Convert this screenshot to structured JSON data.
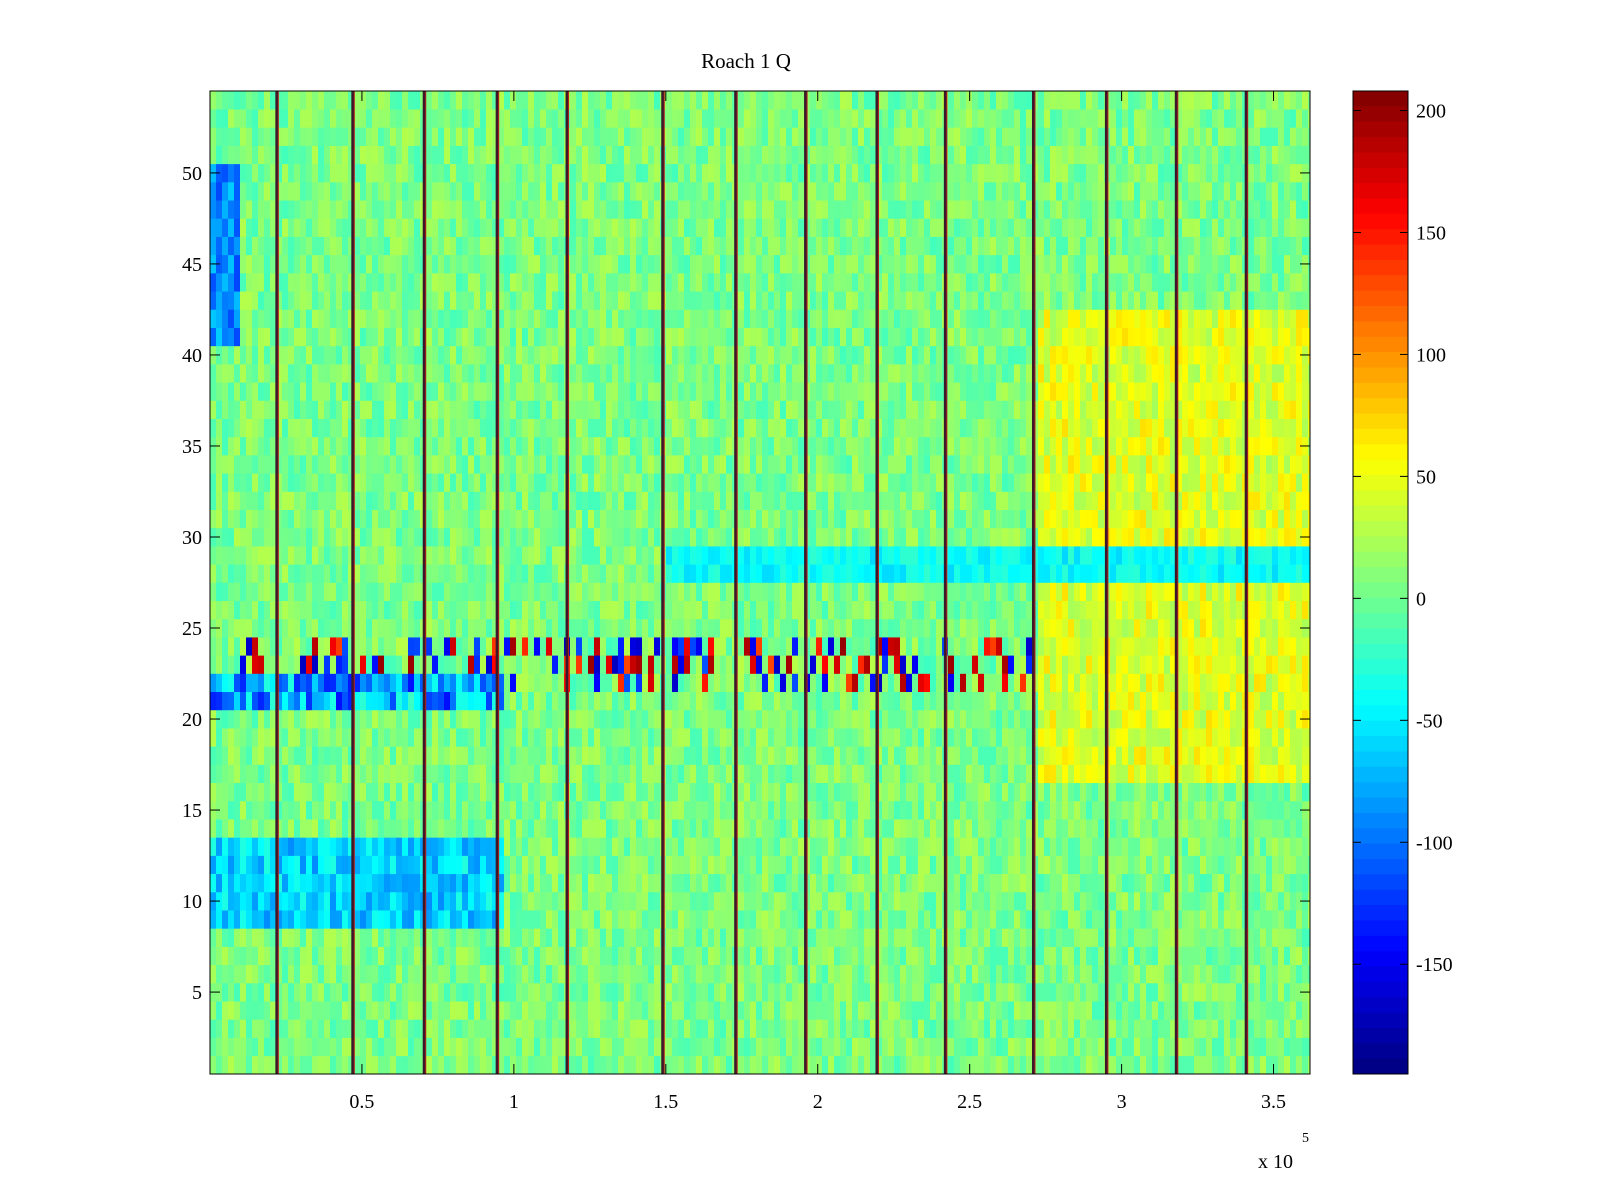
{
  "chart_data": {
    "type": "heatmap",
    "title": "Roach 1 Q",
    "xlabel": "",
    "ylabel": "",
    "x_range": [
      0,
      362000
    ],
    "y_range": [
      0.5,
      54.5
    ],
    "rows": 54,
    "xticks": [
      50000,
      100000,
      150000,
      200000,
      250000,
      300000,
      350000
    ],
    "xtick_labels": [
      "0.5",
      "1",
      "1.5",
      "2",
      "2.5",
      "3",
      "3.5"
    ],
    "x_multiplier": {
      "base": "x 10",
      "exponent": "5"
    },
    "yticks": [
      5,
      10,
      15,
      20,
      25,
      30,
      35,
      40,
      45,
      50
    ],
    "ytick_labels": [
      "5",
      "10",
      "15",
      "20",
      "25",
      "30",
      "35",
      "40",
      "45",
      "50"
    ],
    "colormap": "jet",
    "clim": [
      -195,
      208
    ],
    "colorbar_ticks": [
      200,
      150,
      100,
      50,
      0,
      -50,
      -100,
      -150
    ],
    "colorbar_tick_labels": [
      "200",
      "150",
      "100",
      "50",
      "0",
      "-50",
      "-100",
      "-150"
    ],
    "baseline_value": 5,
    "vertical_lines_x": [
      22000,
      47000,
      70500,
      94500,
      117500,
      149000,
      173000,
      196000,
      219500,
      242000,
      271000,
      295000,
      318000,
      341000
    ],
    "bands": [
      {
        "name": "bright-strip",
        "row_from": 22,
        "row_to": 24,
        "x_from": 8000,
        "x_to": 362000,
        "value_range": [
          -170,
          200
        ]
      },
      {
        "name": "low-strip",
        "row_from": 21,
        "row_to": 22,
        "x_from": 0,
        "x_to": 95000,
        "value_range": [
          -140,
          -20
        ]
      },
      {
        "name": "warm-region",
        "row_from": 17,
        "row_to": 42,
        "x_from": 271000,
        "x_to": 362000,
        "value_range": [
          20,
          70
        ]
      },
      {
        "name": "cool-row-28",
        "row_from": 28,
        "row_to": 29,
        "x_from": 150000,
        "x_to": 362000,
        "value_range": [
          -60,
          -25
        ]
      },
      {
        "name": "left-edge-low",
        "row_from": 41,
        "row_to": 50,
        "x_from": 0,
        "x_to": 8000,
        "value_range": [
          -120,
          -60
        ]
      },
      {
        "name": "left-block-low",
        "row_from": 9,
        "row_to": 13,
        "x_from": 0,
        "x_to": 95000,
        "value_range": [
          -90,
          -30
        ]
      }
    ]
  }
}
